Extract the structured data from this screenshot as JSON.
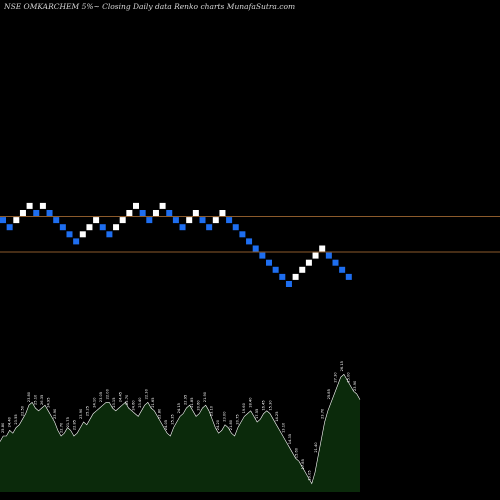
{
  "title": "NSE OMKARCHEM 5%~  Closing Daily data  Renko  charts MunafaSutra.com",
  "colors": {
    "background": "#000000",
    "up_brick": "#ffffff",
    "down_brick": "#1e6ef0",
    "level_line": "#8b5a2b",
    "volume_fill": "#0b2a0b",
    "volume_line": "#ffffff"
  },
  "chart_data": {
    "type": "renko",
    "bricks": [
      {
        "d": "down",
        "row": 1
      },
      {
        "d": "down",
        "row": 2
      },
      {
        "d": "up",
        "row": 1
      },
      {
        "d": "up",
        "row": 0
      },
      {
        "d": "up",
        "row": -1
      },
      {
        "d": "down",
        "row": 0
      },
      {
        "d": "up",
        "row": -1
      },
      {
        "d": "down",
        "row": 0
      },
      {
        "d": "down",
        "row": 1
      },
      {
        "d": "down",
        "row": 2
      },
      {
        "d": "down",
        "row": 3
      },
      {
        "d": "down",
        "row": 4
      },
      {
        "d": "up",
        "row": 3
      },
      {
        "d": "up",
        "row": 2
      },
      {
        "d": "up",
        "row": 1
      },
      {
        "d": "down",
        "row": 2
      },
      {
        "d": "down",
        "row": 3
      },
      {
        "d": "up",
        "row": 2
      },
      {
        "d": "up",
        "row": 1
      },
      {
        "d": "up",
        "row": 0
      },
      {
        "d": "up",
        "row": -1
      },
      {
        "d": "down",
        "row": 0
      },
      {
        "d": "down",
        "row": 1
      },
      {
        "d": "up",
        "row": 0
      },
      {
        "d": "up",
        "row": -1
      },
      {
        "d": "down",
        "row": 0
      },
      {
        "d": "down",
        "row": 1
      },
      {
        "d": "down",
        "row": 2
      },
      {
        "d": "up",
        "row": 1
      },
      {
        "d": "up",
        "row": 0
      },
      {
        "d": "down",
        "row": 1
      },
      {
        "d": "down",
        "row": 2
      },
      {
        "d": "up",
        "row": 1
      },
      {
        "d": "up",
        "row": 0
      },
      {
        "d": "down",
        "row": 1
      },
      {
        "d": "down",
        "row": 2
      },
      {
        "d": "down",
        "row": 3
      },
      {
        "d": "down",
        "row": 4
      },
      {
        "d": "down",
        "row": 5
      },
      {
        "d": "down",
        "row": 6
      },
      {
        "d": "down",
        "row": 7
      },
      {
        "d": "down",
        "row": 8
      },
      {
        "d": "down",
        "row": 9
      },
      {
        "d": "down",
        "row": 10
      },
      {
        "d": "up",
        "row": 9
      },
      {
        "d": "up",
        "row": 8
      },
      {
        "d": "up",
        "row": 7
      },
      {
        "d": "up",
        "row": 6
      },
      {
        "d": "up",
        "row": 5
      },
      {
        "d": "down",
        "row": 6
      },
      {
        "d": "down",
        "row": 7
      },
      {
        "d": "down",
        "row": 8
      },
      {
        "d": "down",
        "row": 9
      }
    ],
    "reference_levels": [
      0,
      5
    ],
    "volume": {
      "values": [
        36,
        40,
        40,
        44,
        42,
        46,
        48,
        52,
        56,
        62,
        64,
        60,
        58,
        60,
        62,
        58,
        54,
        50,
        44,
        40,
        42,
        46,
        44,
        40,
        42,
        46,
        50,
        48,
        52,
        56,
        58,
        60,
        62,
        64,
        64,
        60,
        58,
        60,
        62,
        64,
        60,
        58,
        56,
        54,
        58,
        62,
        64,
        60,
        58,
        54,
        50,
        46,
        42,
        40,
        46,
        50,
        54,
        56,
        60,
        62,
        58,
        54,
        56,
        60,
        62,
        58,
        52,
        46,
        42,
        44,
        48,
        46,
        42,
        40,
        46,
        50,
        54,
        56,
        58,
        54,
        50,
        52,
        56,
        58,
        56,
        52,
        48,
        44,
        40,
        36,
        32,
        28,
        24,
        22,
        18,
        14,
        10,
        6,
        14,
        26,
        38,
        50,
        58,
        64,
        70,
        76,
        82,
        84,
        80,
        76,
        72,
        70,
        66
      ],
      "labels": [
        "25.80",
        "24.40",
        "23.55",
        "22.50",
        "23.80",
        "25.10",
        "26.35",
        "24.95",
        "23.90",
        "22.70",
        "21.75",
        "22.85",
        "23.90",
        "25.25",
        "24.10",
        "23.05",
        "22.00",
        "23.15",
        "24.45",
        "25.70",
        "24.60",
        "23.40",
        "22.30",
        "21.65",
        "22.80",
        "24.05",
        "25.35",
        "24.15",
        "22.95",
        "21.85",
        "20.60",
        "21.90",
        "23.10",
        "24.20",
        "23.00",
        "21.80",
        "20.75",
        "19.60",
        "18.40",
        "17.55",
        "16.45",
        "15.30",
        "14.25",
        "13.10",
        "14.35",
        "15.60",
        "17.85",
        "19.05",
        "21.40",
        "23.70",
        "25.85",
        "27.30",
        "26.15",
        "25.00",
        "23.90"
      ]
    }
  }
}
